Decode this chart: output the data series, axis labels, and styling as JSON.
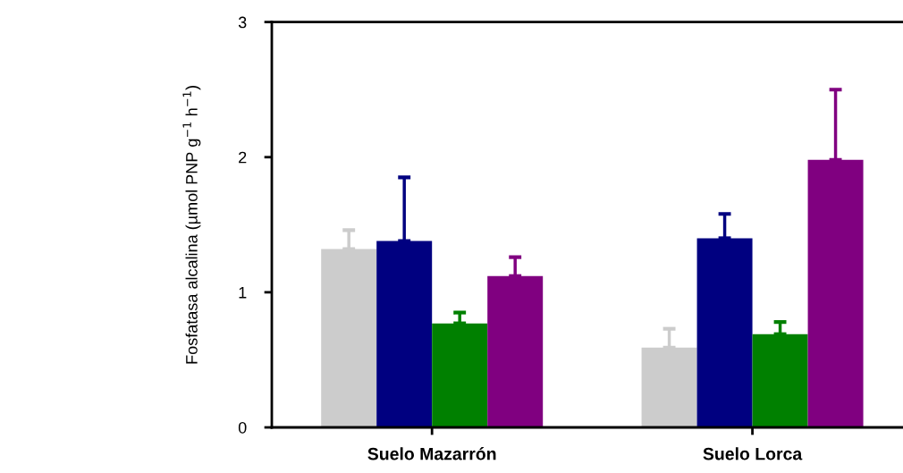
{
  "chart_data": {
    "type": "bar",
    "ylabel": "Fosfatasa alcalina (µmol PNP g$^{−1}$ h$^{−1}$)",
    "categories": [
      "Suelo Mazarrón",
      "Suelo Lorca"
    ],
    "series": [
      {
        "color": "#cccccc",
        "values": [
          1.32,
          0.59
        ],
        "errors": [
          [
            1.32,
            1.46
          ],
          [
            0.59,
            0.73
          ]
        ]
      },
      {
        "color": "#000080",
        "values": [
          1.38,
          1.4
        ],
        "errors": [
          [
            1.38,
            1.85
          ],
          [
            1.4,
            1.58
          ]
        ]
      },
      {
        "color": "#008000",
        "values": [
          0.77,
          0.69
        ],
        "errors": [
          [
            0.77,
            0.85
          ],
          [
            0.69,
            0.78
          ]
        ]
      },
      {
        "color": "#800080",
        "values": [
          1.12,
          1.98
        ],
        "errors": [
          [
            1.12,
            1.26
          ],
          [
            1.98,
            2.5
          ]
        ]
      }
    ],
    "ylim": [
      0,
      3
    ],
    "yticks": [
      0,
      1,
      2,
      3
    ],
    "grid": false,
    "legend": false
  }
}
